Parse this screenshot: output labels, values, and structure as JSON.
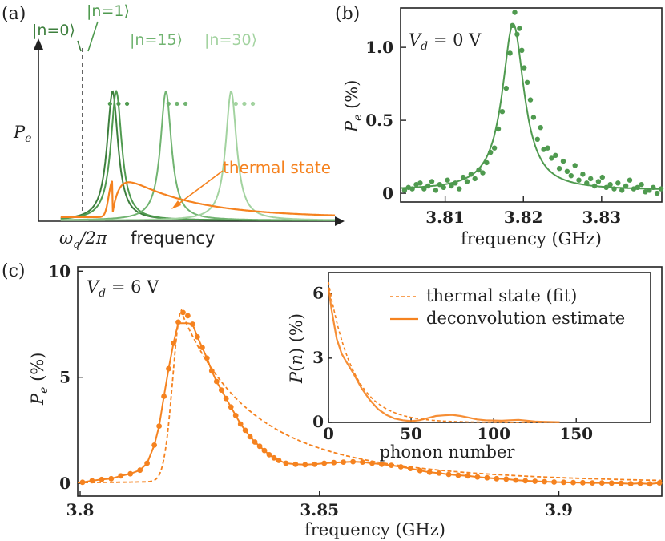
{
  "colors": {
    "green_dark": "#3d7f3d",
    "green_mid": "#4f9a4f",
    "green_light": "#71b471",
    "green_pale": "#a3d3a0",
    "orange": "#f5821f"
  },
  "chart_data": [
    {
      "panel": "(a)",
      "type": "line",
      "xlabel": "frequency",
      "ylabel": "P_e",
      "x_marker_label": "ω_q/2π",
      "series": [
        {
          "name": "|n=0⟩",
          "center": 1.0,
          "height": 1.0,
          "width": 0.18,
          "color": "green_dark"
        },
        {
          "name": "|n=1⟩",
          "center": 1.05,
          "height": 1.0,
          "width": 0.18,
          "color": "green_mid"
        },
        {
          "name": "|n=15⟩",
          "center": 1.72,
          "height": 1.0,
          "width": 0.18,
          "color": "green_light"
        },
        {
          "name": "|n=30⟩",
          "center": 2.6,
          "height": 1.0,
          "width": 0.18,
          "color": "green_pale"
        },
        {
          "name": "thermal state",
          "center": 1.0,
          "height": 0.24,
          "width": 0.0,
          "color": "orange"
        }
      ],
      "ellipsis": "•••",
      "xlim": [
        0,
        4
      ],
      "ylim": [
        0,
        1.1
      ]
    },
    {
      "panel": "(b)",
      "type": "scatter",
      "annotation": "V_d = 0 V",
      "xlabel": "frequency (GHz)",
      "ylabel": "P_e (%)",
      "xticks": [
        3.81,
        3.82,
        3.83
      ],
      "xticklabels": [
        "3.81",
        "3.82",
        "3.83"
      ],
      "yticks": [
        0,
        0.5,
        1.0
      ],
      "yticklabels": [
        "0",
        "0.5",
        "1.0"
      ],
      "xlim": [
        3.8043,
        3.8377
      ],
      "ylim": [
        -0.06,
        1.27
      ],
      "fit": {
        "center": 3.8187,
        "fwhm": 0.0034,
        "amplitude": 1.14,
        "offset": 0.02
      },
      "points": [
        [
          3.8048,
          0.02
        ],
        [
          3.8053,
          0.04
        ],
        [
          3.8058,
          0.03
        ],
        [
          3.8063,
          0.06
        ],
        [
          3.8068,
          0.07
        ],
        [
          3.8073,
          0.03
        ],
        [
          3.8078,
          0.05
        ],
        [
          3.8083,
          0.08
        ],
        [
          3.8088,
          0.02
        ],
        [
          3.8093,
          0.06
        ],
        [
          3.8098,
          0.04
        ],
        [
          3.8103,
          0.09
        ],
        [
          3.8108,
          0.05
        ],
        [
          3.8113,
          0.07
        ],
        [
          3.8118,
          0.03
        ],
        [
          3.8123,
          0.11
        ],
        [
          3.8128,
          0.08
        ],
        [
          3.8133,
          0.13
        ],
        [
          3.8138,
          0.1
        ],
        [
          3.8143,
          0.16
        ],
        [
          3.8148,
          0.14
        ],
        [
          3.8153,
          0.21
        ],
        [
          3.8158,
          0.28
        ],
        [
          3.8163,
          0.31
        ],
        [
          3.8168,
          0.44
        ],
        [
          3.8173,
          0.56
        ],
        [
          3.8178,
          0.72
        ],
        [
          3.8183,
          0.96
        ],
        [
          3.8186,
          1.15
        ],
        [
          3.8189,
          1.24
        ],
        [
          3.8192,
          1.09
        ],
        [
          3.8195,
          1.13
        ],
        [
          3.8198,
          0.98
        ],
        [
          3.8201,
          0.86
        ],
        [
          3.8205,
          0.76
        ],
        [
          3.8209,
          0.64
        ],
        [
          3.8213,
          0.52
        ],
        [
          3.8218,
          0.37
        ],
        [
          3.8222,
          0.45
        ],
        [
          3.8226,
          0.3
        ],
        [
          3.8231,
          0.31
        ],
        [
          3.8236,
          0.24
        ],
        [
          3.8241,
          0.26
        ],
        [
          3.8246,
          0.17
        ],
        [
          3.8251,
          0.22
        ],
        [
          3.8256,
          0.15
        ],
        [
          3.8261,
          0.12
        ],
        [
          3.8266,
          0.19
        ],
        [
          3.8271,
          0.09
        ],
        [
          3.8276,
          0.13
        ],
        [
          3.8281,
          0.07
        ],
        [
          3.8286,
          0.1
        ],
        [
          3.8291,
          0.05
        ],
        [
          3.8296,
          0.08
        ],
        [
          3.8301,
          0.11
        ],
        [
          3.8306,
          0.04
        ],
        [
          3.8311,
          0.06
        ],
        [
          3.8316,
          0.03
        ],
        [
          3.8321,
          0.07
        ],
        [
          3.8326,
          0.02
        ],
        [
          3.8331,
          0.05
        ],
        [
          3.8336,
          0.09
        ],
        [
          3.8341,
          0.03
        ],
        [
          3.8346,
          0.04
        ],
        [
          3.8351,
          0.06
        ],
        [
          3.8356,
          0.01
        ],
        [
          3.8361,
          0.02
        ],
        [
          3.8366,
          0.04
        ],
        [
          3.8371,
          0.0
        ],
        [
          3.8376,
          0.03
        ]
      ]
    },
    {
      "panel": "(c)",
      "type": "scatter",
      "annotation": "V_d = 6 V",
      "xlabel": "frequency (GHz)",
      "ylabel": "P_e (%)",
      "xticks": [
        3.8,
        3.85,
        3.9
      ],
      "xticklabels": [
        "3.8",
        "3.85",
        "3.9"
      ],
      "yticks": [
        0,
        5,
        10
      ],
      "yticklabels": [
        "0",
        "5",
        "10"
      ],
      "xlim": [
        3.7995,
        3.9215
      ],
      "ylim": [
        -0.6,
        10.2
      ],
      "thermal_fit": {
        "threshold": 3.8167,
        "peak": 3.8212,
        "amplitude": 8.05,
        "decay": 0.0115,
        "rise": 0.0026
      },
      "points": [
        [
          3.8005,
          0.05
        ],
        [
          3.8025,
          0.12
        ],
        [
          3.8045,
          0.18
        ],
        [
          3.8065,
          0.22
        ],
        [
          3.8085,
          0.35
        ],
        [
          3.8105,
          0.45
        ],
        [
          3.8125,
          0.62
        ],
        [
          3.814,
          0.95
        ],
        [
          3.8155,
          1.8
        ],
        [
          3.8165,
          2.7
        ],
        [
          3.8175,
          4.1
        ],
        [
          3.8185,
          5.4
        ],
        [
          3.8195,
          6.6
        ],
        [
          3.8205,
          7.6
        ],
        [
          3.8215,
          8.05
        ],
        [
          3.8225,
          7.9
        ],
        [
          3.8235,
          7.5
        ],
        [
          3.8245,
          6.9
        ],
        [
          3.8255,
          6.4
        ],
        [
          3.8265,
          5.9
        ],
        [
          3.8275,
          5.3
        ],
        [
          3.8285,
          4.8
        ],
        [
          3.8295,
          4.4
        ],
        [
          3.8305,
          4.0
        ],
        [
          3.8315,
          3.6
        ],
        [
          3.8325,
          3.2
        ],
        [
          3.8335,
          2.8
        ],
        [
          3.8345,
          2.5
        ],
        [
          3.8355,
          2.2
        ],
        [
          3.8365,
          1.95
        ],
        [
          3.8375,
          1.75
        ],
        [
          3.8385,
          1.55
        ],
        [
          3.8395,
          1.35
        ],
        [
          3.8405,
          1.2
        ],
        [
          3.8415,
          1.08
        ],
        [
          3.843,
          0.95
        ],
        [
          3.845,
          0.9
        ],
        [
          3.847,
          0.88
        ],
        [
          3.849,
          0.9
        ],
        [
          3.851,
          0.95
        ],
        [
          3.853,
          0.98
        ],
        [
          3.855,
          1.0
        ],
        [
          3.857,
          1.02
        ],
        [
          3.859,
          1.0
        ],
        [
          3.861,
          0.95
        ],
        [
          3.863,
          0.9
        ],
        [
          3.865,
          0.85
        ],
        [
          3.867,
          0.78
        ],
        [
          3.869,
          0.7
        ],
        [
          3.871,
          0.6
        ],
        [
          3.873,
          0.52
        ],
        [
          3.875,
          0.48
        ],
        [
          3.877,
          0.42
        ],
        [
          3.879,
          0.38
        ],
        [
          3.881,
          0.35
        ],
        [
          3.883,
          0.3
        ],
        [
          3.885,
          0.26
        ],
        [
          3.887,
          0.22
        ],
        [
          3.889,
          0.2
        ],
        [
          3.891,
          0.15
        ],
        [
          3.893,
          0.12
        ],
        [
          3.895,
          0.1
        ],
        [
          3.897,
          0.08
        ],
        [
          3.899,
          0.06
        ],
        [
          3.901,
          0.05
        ],
        [
          3.903,
          0.04
        ],
        [
          3.905,
          0.03
        ],
        [
          3.907,
          0.02
        ],
        [
          3.909,
          0.02
        ],
        [
          3.911,
          0.01
        ],
        [
          3.913,
          0.0
        ],
        [
          3.915,
          -0.02
        ],
        [
          3.917,
          0.0
        ],
        [
          3.919,
          -0.03
        ],
        [
          3.921,
          0.02
        ]
      ],
      "legend": [
        "thermal state (fit)",
        "deconvolution estimate"
      ]
    },
    {
      "panel": "(c) inset",
      "type": "line",
      "xlabel": "phonon number",
      "ylabel": "P(n) (%)",
      "xticks": [
        0,
        50,
        100,
        150
      ],
      "xticklabels": [
        "0",
        "50",
        "100",
        "150"
      ],
      "yticks": [
        0,
        3,
        6
      ],
      "yticklabels": [
        "0",
        "3",
        "6"
      ],
      "xlim": [
        0,
        195
      ],
      "ylim": [
        0,
        7.0
      ],
      "series": [
        {
          "name": "thermal state (fit)",
          "style": "dashed",
          "n_mean": 14.5,
          "p0": 6.55
        },
        {
          "name": "deconvolution estimate",
          "style": "solid",
          "points": [
            [
              0,
              6.3
            ],
            [
              2,
              5.2
            ],
            [
              5,
              3.9
            ],
            [
              8,
              3.2
            ],
            [
              11,
              2.8
            ],
            [
              15,
              2.3
            ],
            [
              20,
              1.6
            ],
            [
              25,
              1.05
            ],
            [
              30,
              0.62
            ],
            [
              35,
              0.35
            ],
            [
              40,
              0.18
            ],
            [
              45,
              0.1
            ],
            [
              50,
              0.06
            ],
            [
              55,
              0.1
            ],
            [
              60,
              0.2
            ],
            [
              65,
              0.3
            ],
            [
              70,
              0.33
            ],
            [
              75,
              0.35
            ],
            [
              80,
              0.3
            ],
            [
              85,
              0.22
            ],
            [
              90,
              0.14
            ],
            [
              95,
              0.1
            ],
            [
              100,
              0.09
            ],
            [
              105,
              0.08
            ],
            [
              110,
              0.1
            ],
            [
              115,
              0.12
            ],
            [
              120,
              0.08
            ],
            [
              125,
              0.04
            ],
            [
              130,
              0.03
            ],
            [
              135,
              0.02
            ],
            [
              140,
              0.01
            ]
          ]
        }
      ]
    }
  ]
}
